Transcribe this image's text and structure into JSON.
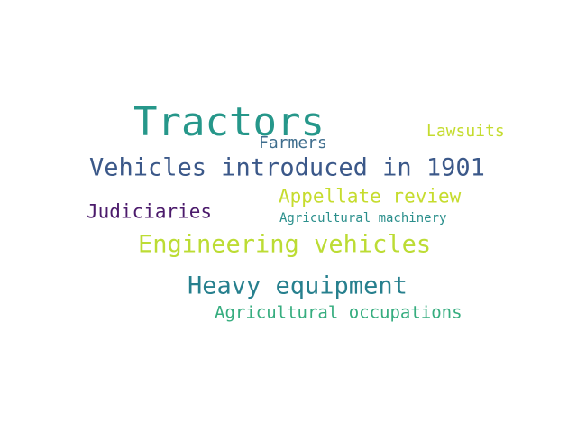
{
  "words": [
    {
      "text": "Tractors",
      "color": "#26978a"
    },
    {
      "text": "Lawsuits",
      "color": "#c5dc2f"
    },
    {
      "text": "Farmers",
      "color": "#3e6d8d"
    },
    {
      "text": "Vehicles introduced in 1901",
      "color": "#3b5889"
    },
    {
      "text": "Appellate review",
      "color": "#c6dc2e"
    },
    {
      "text": "Judiciaries",
      "color": "#4b1a6b"
    },
    {
      "text": "Agricultural machinery",
      "color": "#2b8f8c"
    },
    {
      "text": "Engineering vehicles",
      "color": "#bcdc34"
    },
    {
      "text": "Heavy equipment",
      "color": "#27808e"
    },
    {
      "text": "Agricultural occupations",
      "color": "#36ad7f"
    }
  ]
}
